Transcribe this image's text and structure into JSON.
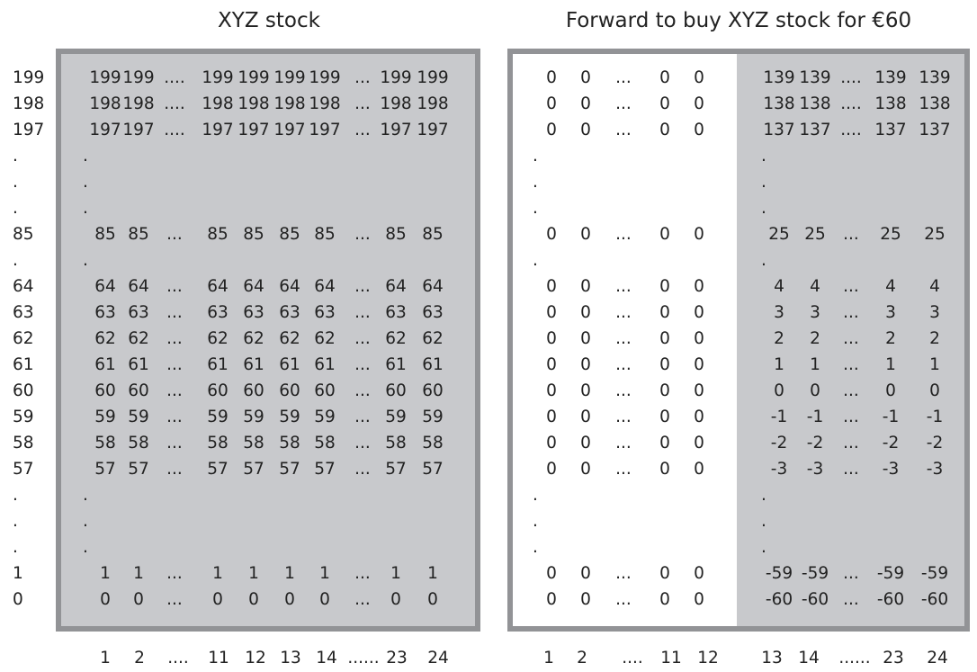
{
  "left_panel": {
    "title": "XYZ stock",
    "x_axis": [
      "1",
      "2",
      "....",
      "11",
      "12",
      "13",
      "14",
      "......",
      "23",
      "24"
    ]
  },
  "right_panel": {
    "title": "Forward to buy XYZ stock for €60",
    "x_axis": [
      "1",
      "2",
      "....",
      "11",
      "12",
      "13",
      "14",
      "......",
      "23",
      "24"
    ]
  },
  "row_labels": [
    "199",
    "198",
    "197",
    ".",
    ".",
    ".",
    "85",
    ".",
    "64",
    "63",
    "62",
    "61",
    "60",
    "59",
    "58",
    "57",
    ".",
    ".",
    ".",
    "1",
    "0"
  ],
  "stock_rows": [
    [
      "199",
      "199",
      "....",
      "199",
      "199",
      "199",
      "199",
      "...",
      "199",
      "199"
    ],
    [
      "198",
      "198",
      "....",
      "198",
      "198",
      "198",
      "198",
      "...",
      "198",
      "198"
    ],
    [
      "197",
      "197",
      "....",
      "197",
      "197",
      "197",
      "197",
      "...",
      "197",
      "197"
    ],
    [
      "."
    ],
    [
      "."
    ],
    [
      "."
    ],
    [
      "85",
      "85",
      "...",
      "85",
      "85",
      "85",
      "85",
      "...",
      "85",
      "85"
    ],
    [
      "."
    ],
    [
      "64",
      "64",
      "...",
      "64",
      "64",
      "64",
      "64",
      "...",
      "64",
      "64"
    ],
    [
      "63",
      "63",
      "...",
      "63",
      "63",
      "63",
      "63",
      "...",
      "63",
      "63"
    ],
    [
      "62",
      "62",
      "...",
      "62",
      "62",
      "62",
      "62",
      "...",
      "62",
      "62"
    ],
    [
      "61",
      "61",
      "...",
      "61",
      "61",
      "61",
      "61",
      "...",
      "61",
      "61"
    ],
    [
      "60",
      "60",
      "...",
      "60",
      "60",
      "60",
      "60",
      "...",
      "60",
      "60"
    ],
    [
      "59",
      "59",
      "...",
      "59",
      "59",
      "59",
      "59",
      "...",
      "59",
      "59"
    ],
    [
      "58",
      "58",
      "...",
      "58",
      "58",
      "58",
      "58",
      "...",
      "58",
      "58"
    ],
    [
      "57",
      "57",
      "...",
      "57",
      "57",
      "57",
      "57",
      "...",
      "57",
      "57"
    ],
    [
      "."
    ],
    [
      "."
    ],
    [
      "."
    ],
    [
      "1",
      "1",
      "...",
      "1",
      "1",
      "1",
      "1",
      "...",
      "1",
      "1"
    ],
    [
      "0",
      "0",
      "...",
      "0",
      "0",
      "0",
      "0",
      "...",
      "0",
      "0"
    ]
  ],
  "forward_rows": [
    [
      "0",
      "0",
      "...",
      "0",
      "0",
      "139",
      "139",
      "....",
      "139",
      "139"
    ],
    [
      "0",
      "0",
      "...",
      "0",
      "0",
      "138",
      "138",
      "....",
      "138",
      "138"
    ],
    [
      "0",
      "0",
      "...",
      "0",
      "0",
      "137",
      "137",
      "....",
      "137",
      "137"
    ],
    [
      ".",
      "."
    ],
    [
      ".",
      "."
    ],
    [
      ".",
      "."
    ],
    [
      "0",
      "0",
      "...",
      "0",
      "0",
      "25",
      "25",
      "...",
      "25",
      "25"
    ],
    [
      ".",
      "."
    ],
    [
      "0",
      "0",
      "...",
      "0",
      "0",
      "4",
      "4",
      "...",
      "4",
      "4"
    ],
    [
      "0",
      "0",
      "...",
      "0",
      "0",
      "3",
      "3",
      "...",
      "3",
      "3"
    ],
    [
      "0",
      "0",
      "...",
      "0",
      "0",
      "2",
      "2",
      "...",
      "2",
      "2"
    ],
    [
      "0",
      "0",
      "...",
      "0",
      "0",
      "1",
      "1",
      "...",
      "1",
      "1"
    ],
    [
      "0",
      "0",
      "...",
      "0",
      "0",
      "0",
      "0",
      "...",
      "0",
      "0"
    ],
    [
      "0",
      "0",
      "...",
      "0",
      "0",
      "-1",
      "-1",
      "...",
      "-1",
      "-1"
    ],
    [
      "0",
      "0",
      "...",
      "0",
      "0",
      "-2",
      "-2",
      "...",
      "-2",
      "-2"
    ],
    [
      "0",
      "0",
      "...",
      "0",
      "0",
      "-3",
      "-3",
      "...",
      "-3",
      "-3"
    ],
    [
      ".",
      "."
    ],
    [
      ".",
      "."
    ],
    [
      ".",
      "."
    ],
    [
      "0",
      "0",
      "...",
      "0",
      "0",
      "-59",
      "-59",
      "...",
      "-59",
      "-59"
    ],
    [
      "0",
      "0",
      "...",
      "0",
      "0",
      "-60",
      "-60",
      "...",
      "-60",
      "-60"
    ]
  ]
}
